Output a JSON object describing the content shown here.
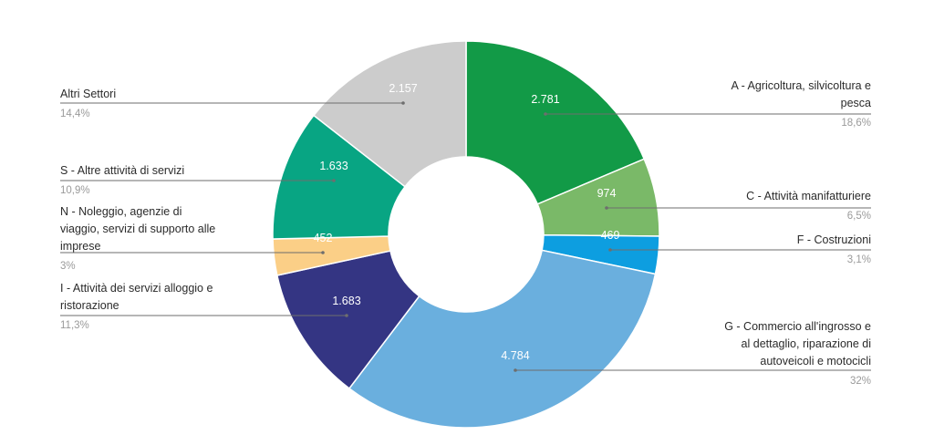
{
  "chart_data": {
    "type": "pie",
    "title": "",
    "donut": true,
    "slices": [
      {
        "name": "A - Agricoltura, silvicoltura e pesca",
        "name_lines": [
          "A - Agricoltura, silvicoltura e",
          "pesca"
        ],
        "value": 2781,
        "value_label": "2.781",
        "percent_label": "18,6%",
        "color": "#129a47"
      },
      {
        "name": "C - Attività manifatturiere",
        "name_lines": [
          "C - Attività manifatturiere"
        ],
        "value": 974,
        "value_label": "974",
        "percent_label": "6,5%",
        "color": "#7ab968"
      },
      {
        "name": "F - Costruzioni",
        "name_lines": [
          "F - Costruzioni"
        ],
        "value": 469,
        "value_label": "469",
        "percent_label": "3,1%",
        "color": "#0d9ee0"
      },
      {
        "name": "G - Commercio all'ingrosso e al dettaglio, riparazione di autoveicoli e motocicli",
        "name_lines": [
          "G - Commercio all'ingrosso e",
          "al dettaglio, riparazione di",
          "autoveicoli e motocicli"
        ],
        "value": 4784,
        "value_label": "4.784",
        "percent_label": "32%",
        "color": "#6aafde"
      },
      {
        "name": "I - Attività dei servizi alloggio e ristorazione",
        "name_lines": [
          "I - Attività dei servizi alloggio e",
          "ristorazione"
        ],
        "value": 1683,
        "value_label": "1.683",
        "percent_label": "11,3%",
        "color": "#343583"
      },
      {
        "name": "N - Noleggio, agenzie di viaggio, servizi di supporto alle imprese",
        "name_lines": [
          "N - Noleggio, agenzie di",
          "viaggio, servizi di supporto alle",
          "imprese"
        ],
        "value": 452,
        "value_label": "452",
        "percent_label": "3%",
        "color": "#fbcf87"
      },
      {
        "name": "S - Altre attività di servizi",
        "name_lines": [
          "S - Altre attività di servizi"
        ],
        "value": 1633,
        "value_label": "1.633",
        "percent_label": "10,9%",
        "color": "#08a583"
      },
      {
        "name": "Altri Settori",
        "name_lines": [
          "Altri Settori"
        ],
        "value": 2157,
        "value_label": "2.157",
        "percent_label": "14,4%",
        "color": "#cccccc"
      }
    ],
    "legend": "callout-labels"
  }
}
